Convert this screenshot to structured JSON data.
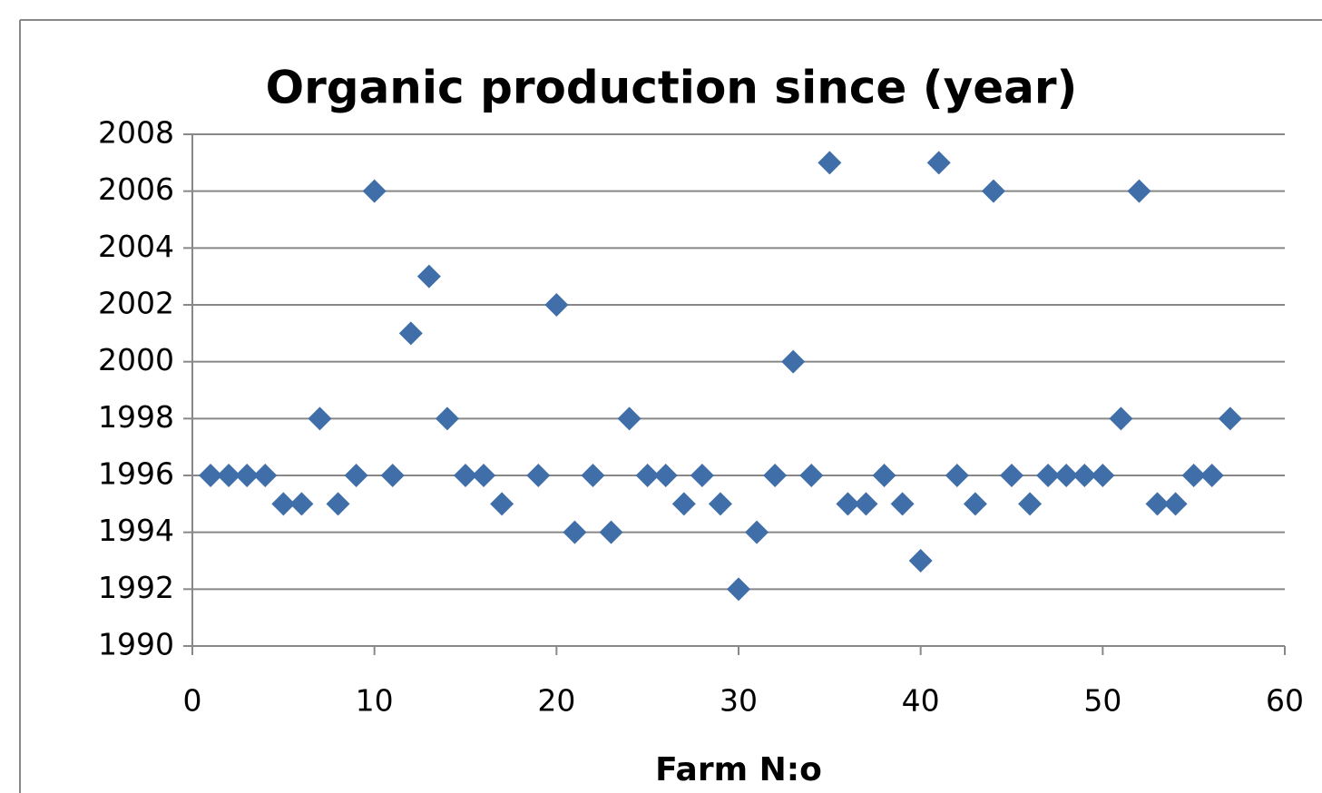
{
  "chart_data": {
    "type": "scatter",
    "title": "Organic production since (year)",
    "x_label": "Farm N:o",
    "series": [
      {
        "name": "Organic production since (year)",
        "color": "#3f6ea8",
        "x": [
          1,
          2,
          3,
          4,
          5,
          6,
          7,
          8,
          9,
          10,
          11,
          12,
          13,
          14,
          15,
          16,
          17,
          19,
          20,
          21,
          22,
          23,
          24,
          25,
          26,
          27,
          28,
          29,
          30,
          31,
          32,
          33,
          34,
          35,
          36,
          37,
          38,
          39,
          40,
          41,
          42,
          43,
          44,
          45,
          46,
          47,
          48,
          49,
          50,
          51,
          52,
          53,
          54,
          55,
          56,
          57
        ],
        "values": [
          1996,
          1996,
          1996,
          1996,
          1995,
          1995,
          1998,
          1995,
          1996,
          2006,
          1996,
          2001,
          2003,
          1998,
          1996,
          1996,
          1995,
          1996,
          2002,
          1994,
          1996,
          1994,
          1998,
          1996,
          1996,
          1995,
          1996,
          1995,
          1992,
          1994,
          1996,
          2000,
          1996,
          2007,
          1995,
          1995,
          1996,
          1995,
          1993,
          2007,
          1996,
          1995,
          2006,
          1996,
          1995,
          1996,
          1996,
          1996,
          1996,
          1998,
          2006,
          1995,
          1995,
          1996,
          1996,
          1998
        ]
      }
    ],
    "xlim": [
      0,
      60
    ],
    "xticks": [
      0,
      10,
      20,
      30,
      40,
      50,
      60
    ],
    "ylim": [
      1990,
      2008
    ],
    "yticks": [
      1990,
      1992,
      1994,
      1996,
      1998,
      2000,
      2002,
      2004,
      2006,
      2008
    ],
    "grid": true
  }
}
